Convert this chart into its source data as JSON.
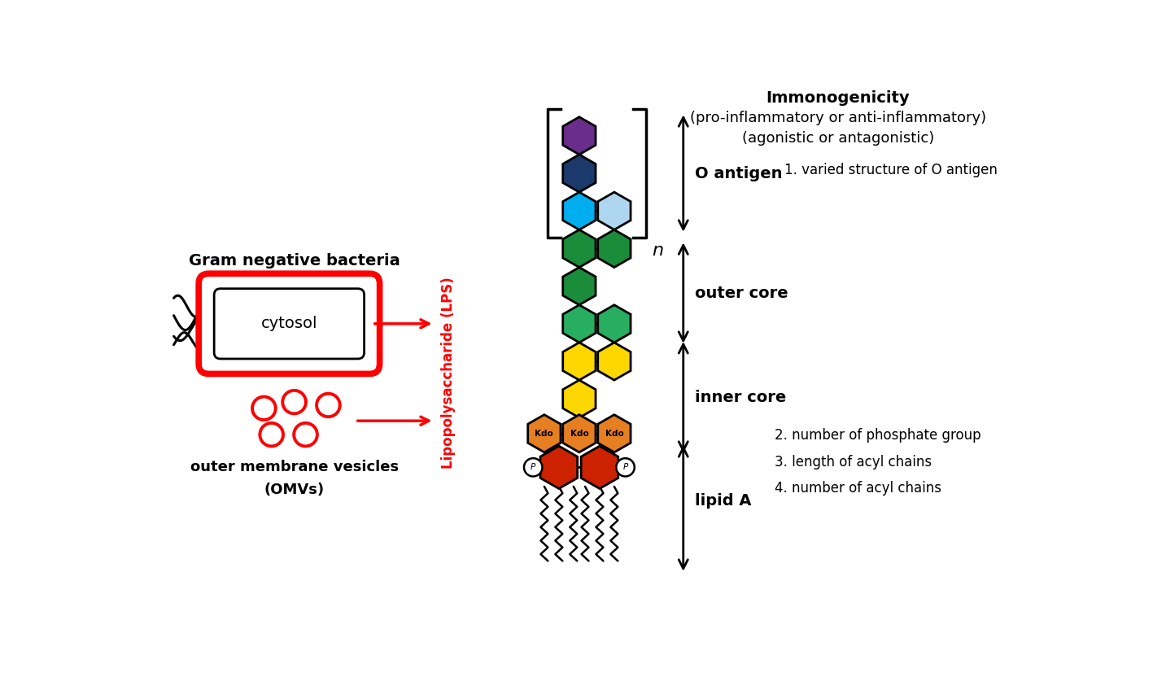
{
  "bg_color": "#ffffff",
  "title_line1": "Immonogenicity",
  "title_line2": "(pro-inflammatory or anti-inflammatory)",
  "title_line3": "(agonistic or antagonistic)",
  "lps_label": "Lipopolysaccharide (LPS)",
  "bacteria_label": "Gram negative bacteria",
  "omv_label1": "outer membrane vesicles",
  "omv_label2": "(OMVs)",
  "cytosol_label": "cytosol",
  "o_antigen_label": "O antigen",
  "outer_core_label": "outer core",
  "inner_core_label": "inner core",
  "lipid_a_label": "lipid A",
  "annotation1": "1. varied structure of O antigen",
  "annotation2": "2. number of phosphate group",
  "annotation3": "3. length of acyl chains",
  "annotation4": "4. number of acyl chains",
  "purple": "#6B2D8B",
  "dark_navy": "#1B3A6B",
  "cyan": "#00AEEF",
  "light_blue": "#AED6F1",
  "dark_green": "#1A8C3A",
  "medium_green": "#27AE60",
  "bright_yellow": "#FFD700",
  "orange_kdo": "#E67E22",
  "red_lipid": "#CC2200",
  "red_color": "#FF0000",
  "black": "#000000",
  "white": "#ffffff"
}
